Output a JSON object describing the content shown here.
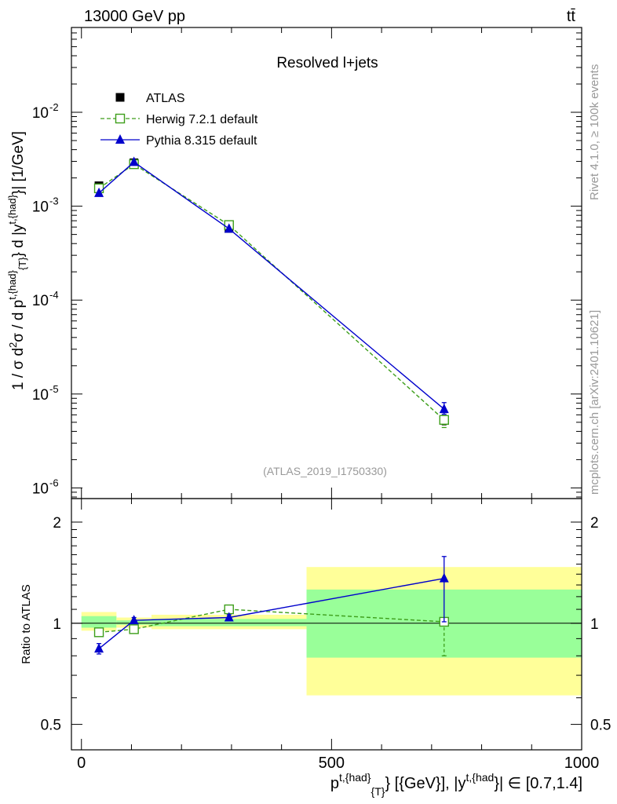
{
  "header": {
    "energy_label": "13000 GeV pp",
    "process_label": "tt̄",
    "plot_title": "Resolved l+jets",
    "analysis_id": "(ATLAS_2019_I1750330)",
    "rivet_label": "Rivet 4.1.0, ≥ 100k events",
    "mcplots_label": "mcplots.cern.ch [arXiv:2401.10621]"
  },
  "chart_data": {
    "type": "line",
    "x_axis": {
      "label_pre": "p",
      "label_sup1": "t,{had}",
      "label_sub1": "{T}",
      "label_mid": "} [{GeV}], |y",
      "label_sup2": "t,{had",
      "label_post": "}| ∈ [0.7,1.4]",
      "range": [
        -20,
        1000
      ],
      "ticks": [
        0,
        500,
        1000
      ],
      "tick_labels": [
        "0",
        "500",
        "1000"
      ]
    },
    "main_panel": {
      "y_label": "1 / σ d²σ / d p^{t,{had}}_{T} d |y^{t,{had}}| [1/GeV]",
      "y_scale": "log",
      "y_range": [
        7.7e-07,
        0.08
      ],
      "tick_labels": [
        {
          "value": 1e-06,
          "base": "10",
          "exp": "-6"
        },
        {
          "value": 1e-05,
          "base": "10",
          "exp": "-5"
        },
        {
          "value": 0.0001,
          "base": "10",
          "exp": "-4"
        },
        {
          "value": 0.001,
          "base": "10",
          "exp": "-3"
        },
        {
          "value": 0.01,
          "base": "10",
          "exp": "-2"
        }
      ],
      "legend": [
        {
          "name": "ATLAS",
          "color": "#000000",
          "marker": "square-filled",
          "line": "none"
        },
        {
          "name": "Herwig 7.2.1 default",
          "color": "#3d9e1a",
          "marker": "square-open",
          "line": "dashed"
        },
        {
          "name": "Pythia 8.315 default",
          "color": "#0000cc",
          "marker": "triangle",
          "line": "solid"
        }
      ],
      "series": [
        {
          "name": "ATLAS",
          "x": [
            35,
            105,
            295,
            725
          ],
          "y": [
            0.00165,
            0.0029,
            0.00058,
            5.3e-06
          ],
          "err_low": [
            5e-05,
            8e-05,
            2e-05,
            6e-07
          ],
          "err_high": [
            5e-05,
            8e-05,
            2e-05,
            6e-07
          ]
        },
        {
          "name": "Herwig 7.2.1 default",
          "x": [
            35,
            105,
            295,
            725
          ],
          "y": [
            0.00155,
            0.0028,
            0.00063,
            5.3e-06
          ],
          "err_low": [
            0,
            0,
            0,
            9e-07
          ],
          "err_high": [
            0,
            0,
            0,
            4e-07
          ]
        },
        {
          "name": "Pythia 8.315 default",
          "x": [
            35,
            105,
            295,
            725
          ],
          "y": [
            0.00138,
            0.00295,
            0.000575,
            6.9e-06
          ],
          "err_low": [
            0,
            0,
            0,
            8e-07
          ],
          "err_high": [
            0,
            0,
            0,
            1.2e-06
          ]
        }
      ]
    },
    "ratio_panel": {
      "y_label": "Ratio to ATLAS",
      "y_scale": "log",
      "y_range": [
        0.42,
        2.35
      ],
      "ticks": [
        0.5,
        1,
        2
      ],
      "tick_labels": [
        "0.5",
        "1",
        "2"
      ],
      "reference": 1,
      "bands": [
        {
          "x_low": 0,
          "x_high": 70,
          "yellow": [
            0.95,
            1.08
          ],
          "green": [
            0.97,
            1.05
          ]
        },
        {
          "x_low": 70,
          "x_high": 140,
          "yellow": [
            0.97,
            1.04
          ],
          "green": [
            0.99,
            1.02
          ]
        },
        {
          "x_low": 140,
          "x_high": 450,
          "yellow": [
            0.96,
            1.06
          ],
          "green": [
            0.98,
            1.03
          ]
        },
        {
          "x_low": 450,
          "x_high": 1000,
          "yellow": [
            0.61,
            1.47
          ],
          "green": [
            0.79,
            1.26
          ]
        }
      ],
      "series": [
        {
          "name": "Herwig 7.2.1 default",
          "x": [
            35,
            105,
            295,
            725
          ],
          "y": [
            0.94,
            0.96,
            1.1,
            1.01
          ],
          "err_low": [
            0,
            0,
            0,
            0.21
          ],
          "err_high": [
            0,
            0,
            0,
            0
          ]
        },
        {
          "name": "Pythia 8.315 default",
          "x": [
            35,
            105,
            295,
            725
          ],
          "y": [
            0.84,
            1.02,
            1.04,
            1.36
          ],
          "err_low": [
            0.03,
            0.02,
            0.02,
            0.35
          ],
          "err_high": [
            0.03,
            0.02,
            0.02,
            0.22
          ]
        }
      ]
    }
  }
}
